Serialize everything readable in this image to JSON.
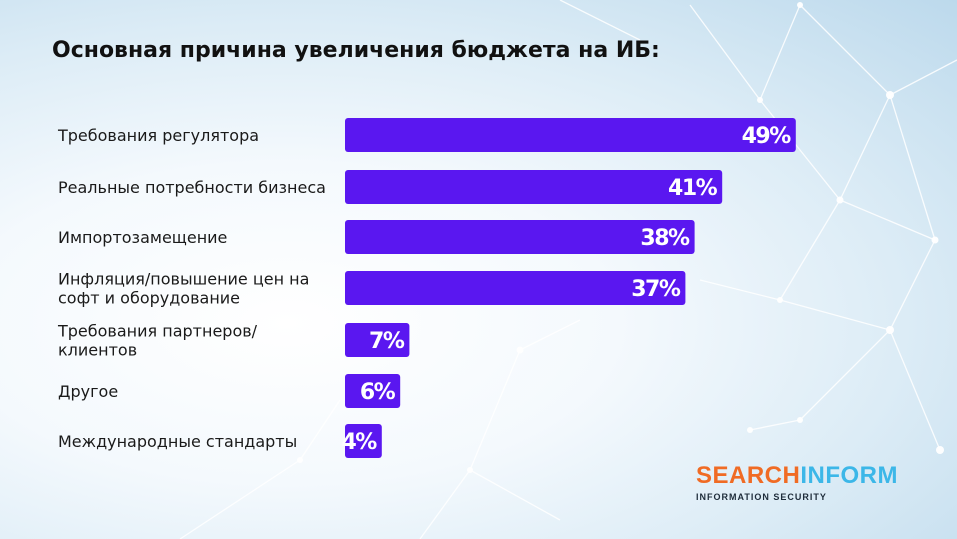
{
  "title": "Основная причина увеличения бюджета на ИБ:",
  "colors": {
    "bar": "#5a17f0",
    "value_text": "#ffffff",
    "logo_search": "#f06b24",
    "logo_inform": "#3cb7e8"
  },
  "logo": {
    "search": "SEARCH",
    "inform": "INFORM",
    "subtitle": "INFORMATION SECURITY"
  },
  "chart_data": {
    "type": "bar",
    "orientation": "horizontal",
    "title": "Основная причина увеличения бюджета на ИБ:",
    "categories": [
      "Требования регулятора",
      "Реальные потребности бизнеса",
      "Импортозамещение",
      "Инфляция/повышение цен на софт и оборудование",
      "Требования партнеров/ клиентов",
      "Другое",
      "Международные стандарты"
    ],
    "category_lines": [
      [
        "Требования регулятора"
      ],
      [
        "Реальные потребности бизнеса"
      ],
      [
        "Импортозамещение"
      ],
      [
        "Инфляция/повышение цен на",
        "софт и оборудование"
      ],
      [
        "Требования партнеров/",
        "клиентов"
      ],
      [
        "Другое"
      ],
      [
        "Международные стандарты"
      ]
    ],
    "values": [
      49,
      41,
      38,
      37,
      7,
      6,
      4
    ],
    "value_labels": [
      "49%",
      "41%",
      "38%",
      "37%",
      "7%",
      "6%",
      "4%"
    ],
    "unit": "%",
    "grid": false,
    "legend": "none"
  }
}
